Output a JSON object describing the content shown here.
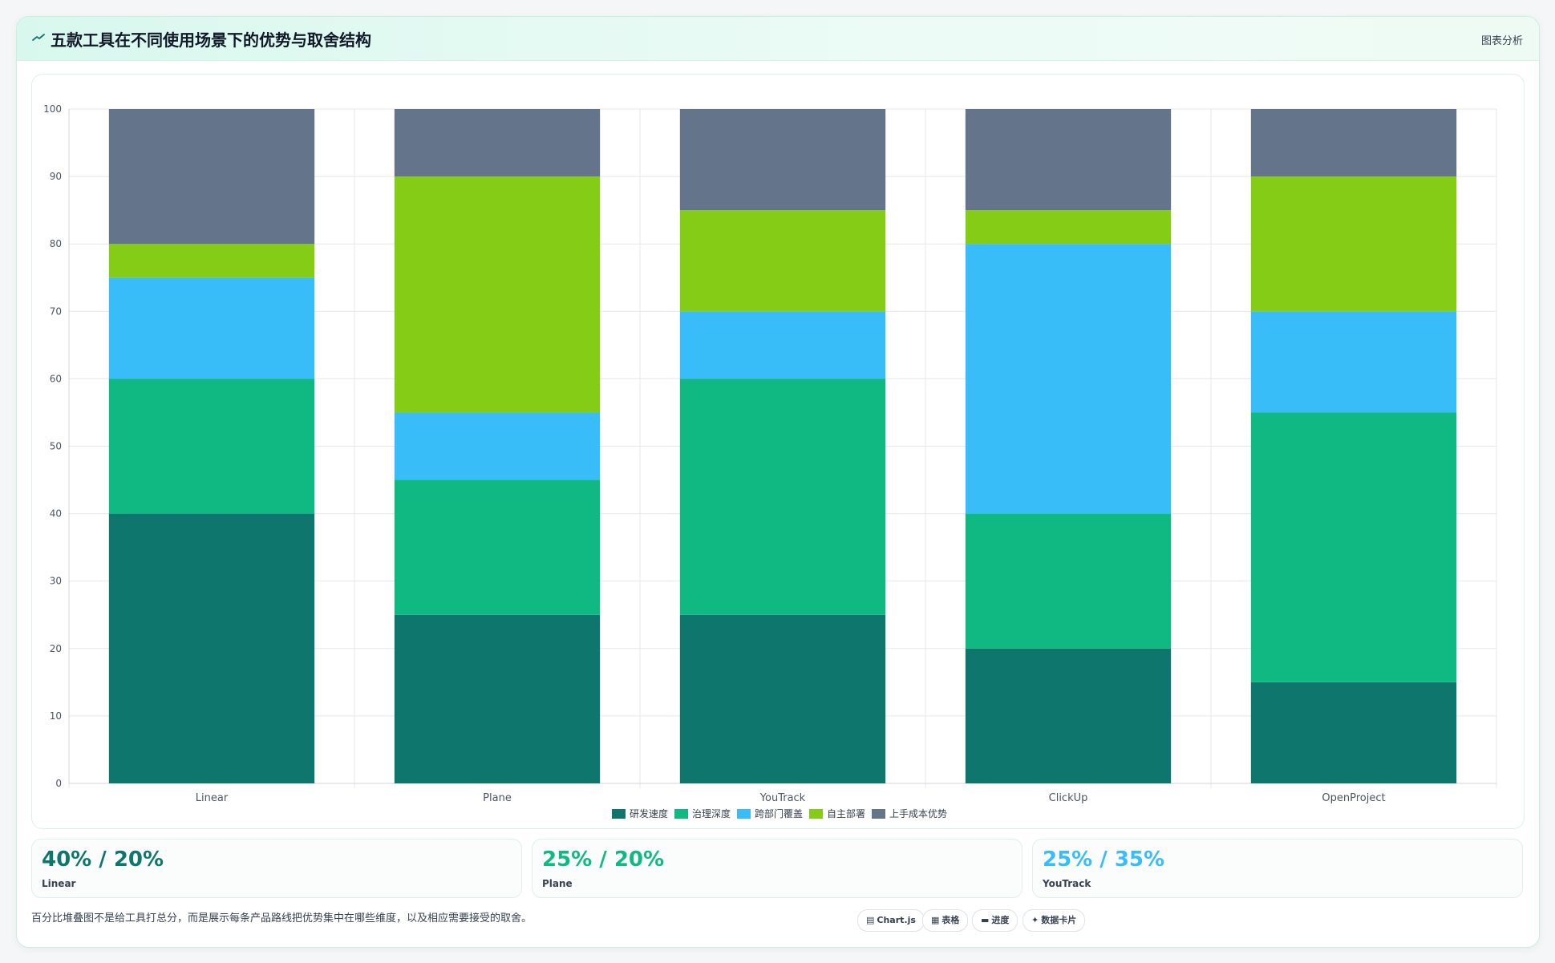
{
  "header": {
    "title": "五款工具在不同使用场景下的优势与取舍结构",
    "link_label": "图表分析"
  },
  "colors": {
    "研发速度": "#0f766e",
    "治理深度": "#10b981",
    "跨部门覆盖": "#38bdf8",
    "自主部署": "#84cc16",
    "上手成本优势": "#64748b"
  },
  "chart_data": {
    "type": "bar",
    "stacked": true,
    "categories": [
      "Linear",
      "Plane",
      "YouTrack",
      "ClickUp",
      "OpenProject"
    ],
    "series": [
      {
        "name": "研发速度",
        "color": "#0f766e",
        "values": [
          40,
          25,
          25,
          20,
          15
        ]
      },
      {
        "name": "治理深度",
        "color": "#10b981",
        "values": [
          20,
          20,
          35,
          20,
          40
        ]
      },
      {
        "name": "跨部门覆盖",
        "color": "#38bdf8",
        "values": [
          15,
          10,
          10,
          40,
          15
        ]
      },
      {
        "name": "自主部署",
        "color": "#84cc16",
        "values": [
          5,
          35,
          15,
          5,
          20
        ]
      },
      {
        "name": "上手成本优势",
        "color": "#64748b",
        "values": [
          20,
          10,
          15,
          15,
          10
        ]
      }
    ],
    "ylim": [
      0,
      100
    ],
    "yticks": [
      0,
      10,
      20,
      30,
      40,
      50,
      60,
      70,
      80,
      90,
      100
    ],
    "grid": true,
    "legend": "bottom"
  },
  "stats": [
    {
      "value": "40% / 20%",
      "label": "Linear",
      "color": "#0f766e"
    },
    {
      "value": "25% / 20%",
      "label": "Plane",
      "color": "#10b981"
    },
    {
      "value": "25% / 35%",
      "label": "YouTrack",
      "color": "#38bdf8"
    }
  ],
  "footnote": "百分比堆叠图不是给工具打总分，而是展示每条产品路线把优势集中在哪些维度，以及相应需要接受的取舍。",
  "pills": [
    {
      "icon": "▤",
      "icon_name": "chart-icon",
      "label": "Chart.js"
    },
    {
      "icon": "▦",
      "icon_name": "table-icon",
      "label": "表格"
    },
    {
      "icon": "▬",
      "icon_name": "progress-icon",
      "label": "进度"
    },
    {
      "icon": "✦",
      "icon_name": "card-icon",
      "label": "数据卡片"
    }
  ]
}
